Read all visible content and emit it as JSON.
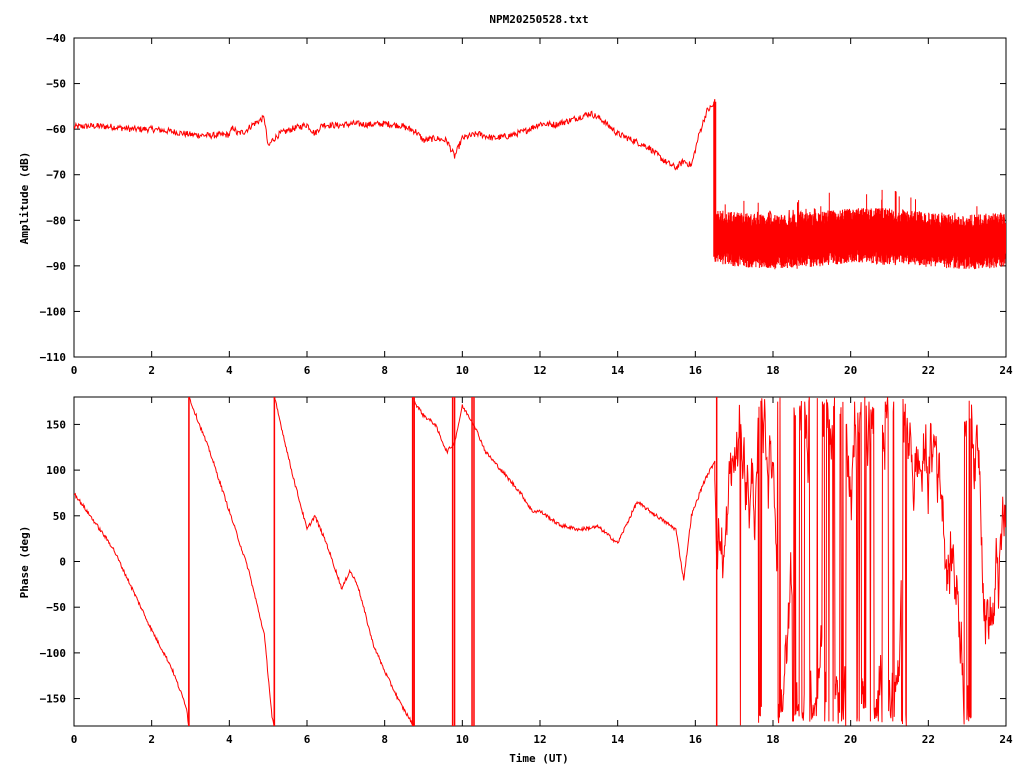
{
  "title": "NPM20250528.txt",
  "colors": {
    "series": "#ff0000",
    "frame": "#000000",
    "background": "#ffffff"
  },
  "chart_data": [
    {
      "type": "line",
      "title": "NPM20250528.txt",
      "xlabel": "",
      "ylabel": "Amplitude (dB)",
      "xlim": [
        0,
        24
      ],
      "ylim": [
        -110,
        -40
      ],
      "xticks": [
        "0",
        "2",
        "4",
        "6",
        "8",
        "10",
        "12",
        "14",
        "16",
        "18",
        "20",
        "22",
        "24"
      ],
      "yticks": [
        "-40",
        "-50",
        "-60",
        "-70",
        "-80",
        "-90",
        "-100",
        "-110"
      ],
      "grid": false,
      "legend": "none",
      "series": [
        {
          "x": [
            0,
            0.5,
            1,
            1.5,
            2,
            2.5,
            3,
            3.5,
            4,
            4.1,
            4.2,
            4.4,
            4.6,
            4.9,
            5.0,
            5.1,
            5.3,
            5.6,
            6.0,
            6.2,
            6.4,
            6.8,
            7.2,
            7.6,
            8.0,
            8.4,
            8.8,
            9.0,
            9.3,
            9.6,
            9.8,
            10.0,
            10.4,
            10.8,
            11.2,
            11.6,
            12.0,
            12.4,
            12.8,
            13.3,
            13.6,
            14.0,
            14.4,
            14.8,
            15.2,
            15.5,
            15.7,
            15.9,
            16.1,
            16.3,
            16.5,
            16.51,
            17,
            18,
            19,
            20,
            21,
            22,
            23,
            24
          ],
          "y": [
            -59.5,
            -59.3,
            -59.5,
            -60.0,
            -60.0,
            -60.5,
            -61.2,
            -61.4,
            -61.2,
            -59.5,
            -61.0,
            -60.5,
            -59.0,
            -57.5,
            -64.0,
            -62.5,
            -61.0,
            -60.0,
            -59.0,
            -61.0,
            -59.0,
            -59.2,
            -58.8,
            -59.0,
            -58.8,
            -59.2,
            -60.5,
            -62.5,
            -62.0,
            -62.5,
            -66.0,
            -62.0,
            -61.0,
            -62.0,
            -61.5,
            -60.5,
            -58.8,
            -59.0,
            -58.0,
            -56.5,
            -58.0,
            -61.0,
            -62.5,
            -64.0,
            -67.0,
            -68.5,
            -67.0,
            -68.0,
            -61.0,
            -56.0,
            -54.5,
            -84.0,
            -84.0,
            -83.5,
            -83.0,
            -83.5,
            -84.0,
            -84.0,
            -84.5,
            -84.5
          ]
        }
      ]
    },
    {
      "type": "line",
      "title": "",
      "xlabel": "Time (UT)",
      "ylabel": "Phase (deg)",
      "xlim": [
        0,
        24
      ],
      "ylim": [
        -180,
        180
      ],
      "xticks": [
        "0",
        "2",
        "4",
        "6",
        "8",
        "10",
        "12",
        "14",
        "16",
        "18",
        "20",
        "22",
        "24"
      ],
      "yticks": [
        "150",
        "100",
        "50",
        "0",
        "-50",
        "-100",
        "-150"
      ],
      "grid": false,
      "legend": "none",
      "series": [
        {
          "x": [
            0,
            0.5,
            1.0,
            1.5,
            2.0,
            2.5,
            2.9,
            2.95,
            2.96,
            3.5,
            4.0,
            4.5,
            4.9,
            5.1,
            5.15,
            5.16,
            5.6,
            6.0,
            6.2,
            6.5,
            6.9,
            7.1,
            7.3,
            7.7,
            8.0,
            8.4,
            8.75,
            8.76,
            9.0,
            9.3,
            9.6,
            9.8,
            10.0,
            10.3,
            10.6,
            11.0,
            11.5,
            11.8,
            12.0,
            12.5,
            13.0,
            13.5,
            14.0,
            14.5,
            15.0,
            15.5,
            15.7,
            15.9,
            16.2,
            16.5
          ],
          "y": [
            75,
            45,
            15,
            -30,
            -75,
            -115,
            -160,
            -180,
            180,
            120,
            55,
            -10,
            -80,
            -170,
            -180,
            180,
            100,
            35,
            50,
            20,
            -30,
            -10,
            -25,
            -90,
            -120,
            -155,
            -180,
            175,
            160,
            150,
            120,
            130,
            170,
            150,
            120,
            100,
            75,
            55,
            55,
            40,
            35,
            38,
            20,
            65,
            50,
            35,
            -20,
            50,
            85,
            110
          ]
        }
      ],
      "noise_after_x": 16.5
    }
  ]
}
